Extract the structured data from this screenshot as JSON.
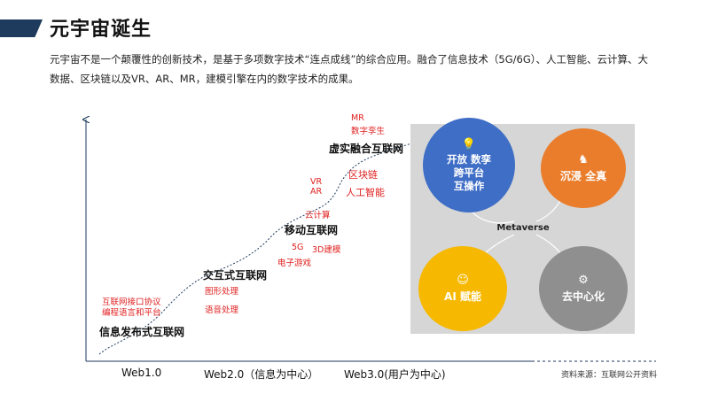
{
  "header": {
    "title": "元宇宙诞生",
    "intro_line1": "元宇宙不是一个颠覆性的创新技术，是基于多项数字技术“连点成线”的综合应用。融合了信息技术（5G/6G）、人工智能、云计算、大",
    "intro_line2": "数据、区块链以及VR、AR、MR，建模引擎在内的数字技术的成果。"
  },
  "timeline": {
    "stages": {
      "info_release": "信息发布式互联网",
      "interactive": "交互式互联网",
      "mobile": "移动互联网",
      "virtual_real": "虚实融合互联网"
    },
    "tech": {
      "interface_protocol": "互联网接口协议",
      "programming_language": "编程语言和平台",
      "graphics": "图形处理",
      "speech": "语音处理",
      "fiveg": "5G",
      "threed_modeling": "3D建模",
      "esports": "电子游戏",
      "cloud": "云计算",
      "vr": "VR",
      "ar": "AR",
      "ai": "人工智能",
      "blockchain": "区块链",
      "mr": "MR",
      "digital_twin": "数字孪生"
    },
    "x_axis": {
      "web1": "Web1.0",
      "web2": "Web2.0（信息为中心）",
      "web3": "Web3.0(用户为中心)"
    }
  },
  "metaverse": {
    "center_label": "Metaverse",
    "quadrants": {
      "open": {
        "line1": "开放 数孪",
        "line2": "跨平台",
        "line3": "互操作",
        "icon": "lightbulb-icon",
        "color": "#3f6ec6"
      },
      "immersive": {
        "label": "沉浸 全真",
        "icon": "chess-knight-icon",
        "color": "#ea7d2c"
      },
      "ai": {
        "label": "AI 赋能",
        "icon": "head-gear-icon",
        "color": "#f6b800"
      },
      "decentral": {
        "label": "去中心化",
        "icon": "gears-icon",
        "color": "#8f8f8f"
      }
    }
  },
  "footer": {
    "source": "资料来源：互联网公开资料"
  }
}
